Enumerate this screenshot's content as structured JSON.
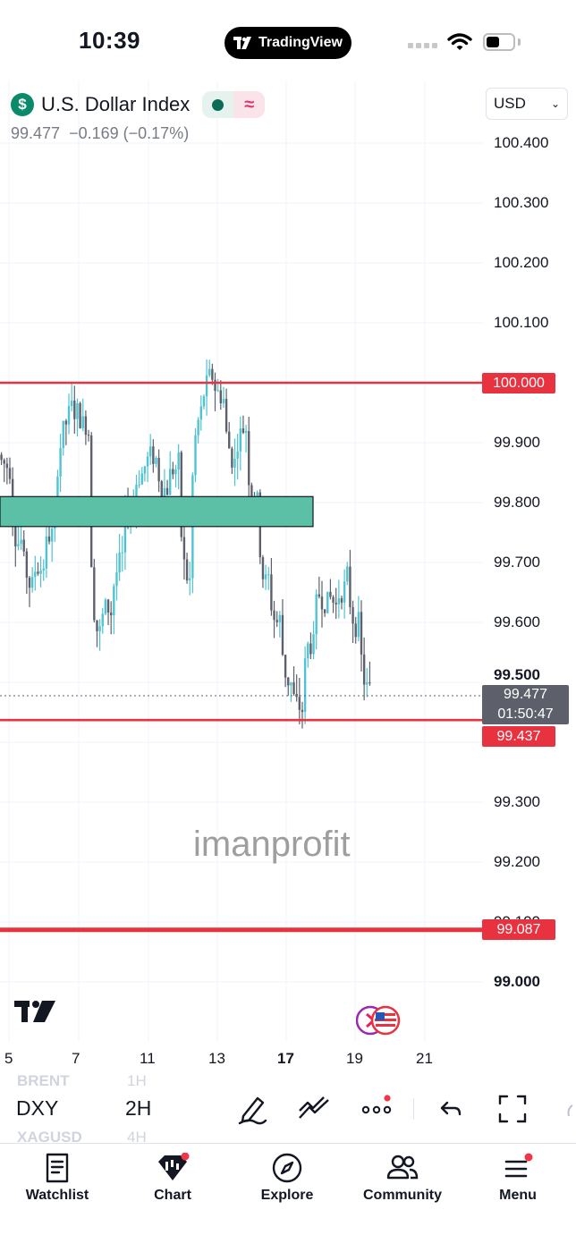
{
  "status_bar": {
    "time": "10:39",
    "app_pill": "TradingView"
  },
  "header": {
    "symbol_name": "U.S. Dollar Index",
    "currency_icon": "$",
    "last_price": "99.477",
    "change": "−0.169",
    "change_pct": "(−0.17%)",
    "currency": "USD"
  },
  "price_axis": {
    "ticks": [
      "100.400",
      "100.300",
      "100.200",
      "100.100",
      "99.900",
      "99.800",
      "99.700",
      "99.600",
      "99.300",
      "99.200",
      "99.000"
    ],
    "partially_hidden_ticks": [
      "99.500",
      "99.100"
    ],
    "tags": {
      "level_high": "100.000",
      "level_mid": "99.437",
      "level_low": "99.087"
    },
    "last_price_tag": {
      "price": "99.477",
      "countdown": "01:50:47"
    }
  },
  "time_axis": {
    "labels": [
      "5",
      "7",
      "11",
      "13",
      "17",
      "19",
      "21"
    ]
  },
  "watermark": "imanprofit",
  "chart_data": {
    "type": "candlestick",
    "symbol": "DXY",
    "interval": "2H",
    "ylim": [
      98.95,
      100.5
    ],
    "horizontal_levels": [
      100.0,
      99.437,
      99.087
    ],
    "zone": {
      "from": 99.76,
      "to": 99.81
    },
    "candles_close_approx": [
      99.86,
      99.74,
      99.66,
      99.7,
      99.75,
      99.93,
      99.95,
      99.93,
      99.58,
      99.62,
      99.7,
      99.8,
      99.86,
      99.87,
      99.83,
      99.86,
      99.66,
      99.95,
      100.0,
      99.98,
      99.87,
      99.93,
      99.8,
      99.66,
      99.6,
      99.5,
      99.45,
      99.57,
      99.65,
      99.63,
      99.67,
      99.6,
      99.48
    ]
  },
  "toolbar": {
    "symbol": "DXY",
    "interval": "2H",
    "ghost_above": [
      "BRENT",
      "1H"
    ],
    "ghost_below": [
      "XAGUSD",
      "4H"
    ]
  },
  "nav": {
    "items": [
      {
        "label": "Watchlist",
        "icon": "watchlist-icon"
      },
      {
        "label": "Chart",
        "icon": "chart-icon"
      },
      {
        "label": "Explore",
        "icon": "compass-icon"
      },
      {
        "label": "Community",
        "icon": "community-icon"
      },
      {
        "label": "Menu",
        "icon": "menu-icon"
      }
    ]
  },
  "colors": {
    "level_red": "#e8323f",
    "zone": "#5bc0a6",
    "candle_up": "#4fc3d1",
    "candle_down": "#5d606b",
    "brand_green": "#0a8a6a"
  }
}
